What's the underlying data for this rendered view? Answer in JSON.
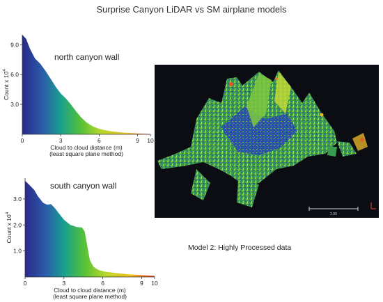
{
  "page_title": "Surprise Canyon LiDAR vs SM airplane models",
  "caption": "Model 2:  Highly Processed data",
  "scalebar_label": "2.00",
  "colors": {
    "ramp": [
      "#2a2a8a",
      "#2b5ca8",
      "#17a08f",
      "#52c03a",
      "#b7d82a",
      "#f0c020",
      "#e8301a"
    ],
    "lidar_background": "#0b0d12"
  },
  "chart_data": [
    {
      "type": "area",
      "annotation": "north canyon wall",
      "xlabel": "Cloud to cloud distance (m)",
      "xlabel2": "(least square plane method)",
      "ylabel": "Count  x 10",
      "ylabel_exp": "4",
      "xlim": [
        0,
        10
      ],
      "ylim": [
        0,
        10
      ],
      "xticks": [
        0,
        3,
        6,
        9,
        10
      ],
      "xtick_labels": [
        "0",
        "3",
        "6",
        "9",
        "10"
      ],
      "yticks": [
        3,
        6,
        9
      ],
      "ytick_labels": [
        "3.0",
        "6.0",
        "9.0"
      ],
      "x": [
        0,
        0.3,
        0.6,
        1.0,
        1.4,
        1.8,
        2.2,
        2.6,
        3.0,
        3.4,
        3.8,
        4.2,
        4.6,
        5.0,
        5.5,
        6.0,
        6.5,
        7.0,
        7.5,
        8.0,
        8.5,
        9.0,
        9.5,
        10.0
      ],
      "y": [
        10.0,
        9.6,
        8.6,
        7.6,
        7.1,
        6.4,
        5.6,
        4.8,
        4.1,
        3.6,
        3.0,
        2.3,
        1.7,
        1.2,
        0.8,
        0.55,
        0.4,
        0.3,
        0.22,
        0.16,
        0.12,
        0.08,
        0.05,
        0.03
      ]
    },
    {
      "type": "area",
      "annotation": "south canyon wall",
      "xlabel": "Cloud to cloud distance (m)",
      "xlabel2": "(least square plane method)",
      "ylabel": "Count  x 10",
      "ylabel_exp": "4",
      "xlim": [
        0,
        10
      ],
      "ylim": [
        0,
        3.8
      ],
      "xticks": [
        0,
        3,
        6,
        9,
        10
      ],
      "xtick_labels": [
        "0",
        "3",
        "6",
        "9",
        "10"
      ],
      "yticks": [
        1,
        2,
        3
      ],
      "ytick_labels": [
        "1.0",
        "2.0",
        "3.0"
      ],
      "x": [
        0,
        0.3,
        0.7,
        1.0,
        1.4,
        1.7,
        2.0,
        2.3,
        2.6,
        3.0,
        3.5,
        4.0,
        4.4,
        4.6,
        4.8,
        5.0,
        5.3,
        5.7,
        6.2,
        7.0,
        8.0,
        9.0,
        10.0
      ],
      "y": [
        3.7,
        3.55,
        3.35,
        3.1,
        2.85,
        2.78,
        2.8,
        2.65,
        2.45,
        2.2,
        2.0,
        1.92,
        1.9,
        1.75,
        1.2,
        0.65,
        0.38,
        0.26,
        0.2,
        0.15,
        0.1,
        0.07,
        0.04
      ]
    }
  ]
}
